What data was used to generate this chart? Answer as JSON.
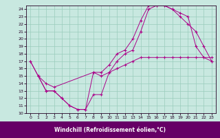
{
  "xlabel": "Windchill (Refroidissement éolien,°C)",
  "xlim": [
    -0.5,
    23.5
  ],
  "ylim": [
    10,
    24.5
  ],
  "xticks": [
    0,
    1,
    2,
    3,
    4,
    5,
    6,
    7,
    8,
    9,
    10,
    11,
    12,
    13,
    14,
    15,
    16,
    17,
    18,
    19,
    20,
    21,
    22,
    23
  ],
  "yticks": [
    10,
    11,
    12,
    13,
    14,
    15,
    16,
    17,
    18,
    19,
    20,
    21,
    22,
    23,
    24
  ],
  "bg_color": "#c8e8e0",
  "line_color": "#aa0088",
  "grid_color": "#99ccbb",
  "xlabel_bg": "#660066",
  "xlabel_fg": "#ffffff",
  "line1_x": [
    0,
    1,
    2,
    3,
    4,
    5,
    6,
    7,
    8,
    9,
    10,
    11,
    12,
    13,
    14,
    15,
    16,
    17,
    18,
    19,
    20,
    21,
    22,
    23
  ],
  "line1_y": [
    17,
    15,
    13,
    13,
    12,
    11,
    10.5,
    10.5,
    12.5,
    12.5,
    15.5,
    17,
    18,
    18.5,
    21,
    24,
    24.5,
    24.5,
    24,
    23,
    22,
    21,
    19,
    17
  ],
  "line2_x": [
    0,
    1,
    2,
    3,
    4,
    5,
    6,
    7,
    8,
    9,
    10,
    11,
    12,
    13,
    14,
    15,
    16,
    17,
    18,
    19,
    20,
    21,
    22,
    23
  ],
  "line2_y": [
    17,
    15,
    13,
    13,
    12,
    11,
    10.5,
    10.5,
    15.5,
    15.5,
    16.5,
    18,
    18.5,
    20,
    22.5,
    24.5,
    24.5,
    24.5,
    24,
    23.5,
    23,
    19,
    17.5,
    17
  ],
  "line3_x": [
    1,
    2,
    3,
    8,
    9,
    10,
    11,
    12,
    13,
    14,
    15,
    16,
    17,
    18,
    19,
    20,
    21,
    22,
    23
  ],
  "line3_y": [
    15,
    14,
    13.5,
    15.5,
    15,
    15.5,
    16,
    16.5,
    17,
    17.5,
    17.5,
    17.5,
    17.5,
    17.5,
    17.5,
    17.5,
    17.5,
    17.5,
    17.5
  ]
}
